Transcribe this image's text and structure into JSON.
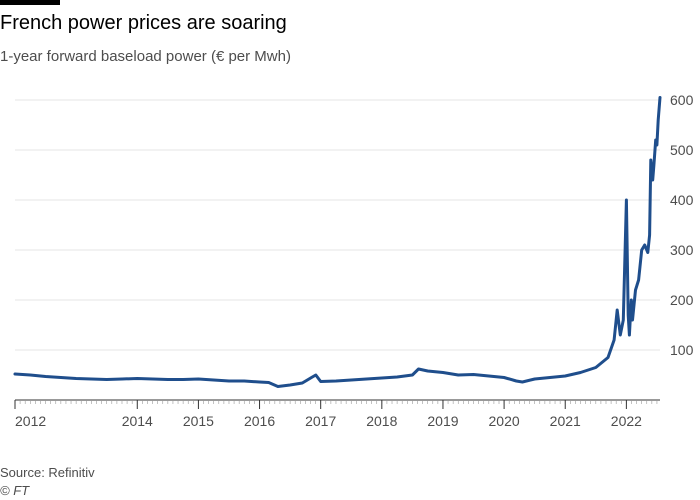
{
  "title": "French power prices are soaring",
  "subtitle": "1-year forward baseload power (€ per Mwh)",
  "source": "Source: Refinitiv",
  "copyright": "© FT",
  "colors": {
    "line": "#1f4e8c",
    "grid": "#e6e6e6",
    "axis": "#333333",
    "brand_bar": "#000000"
  },
  "chart_data": {
    "type": "line",
    "title": "French power prices are soaring",
    "subtitle": "1-year forward baseload power (€ per Mwh)",
    "xlabel": "",
    "ylabel": "",
    "y_axis_position": "right",
    "grid": true,
    "xlim": [
      2012.0,
      2022.55
    ],
    "ylim": [
      0,
      620
    ],
    "y_ticks": [
      100,
      200,
      300,
      400,
      500,
      600
    ],
    "y_tick_labels": [
      "100",
      "200",
      "300",
      "400",
      "500",
      "600"
    ],
    "x_ticks": [
      2012,
      2014,
      2015,
      2016,
      2017,
      2018,
      2019,
      2020,
      2021,
      2022
    ],
    "x_tick_labels": [
      "2012",
      "2014",
      "2015",
      "2016",
      "2017",
      "2018",
      "2019",
      "2020",
      "2021",
      "2022"
    ],
    "series": [
      {
        "name": "",
        "x": [
          2012.0,
          2012.25,
          2012.5,
          2012.75,
          2013.0,
          2013.25,
          2013.5,
          2013.75,
          2014.0,
          2014.25,
          2014.5,
          2014.75,
          2015.0,
          2015.25,
          2015.5,
          2015.75,
          2016.0,
          2016.15,
          2016.3,
          2016.5,
          2016.7,
          2016.85,
          2016.92,
          2017.0,
          2017.25,
          2017.5,
          2017.75,
          2018.0,
          2018.25,
          2018.5,
          2018.6,
          2018.75,
          2019.0,
          2019.25,
          2019.5,
          2019.75,
          2020.0,
          2020.2,
          2020.3,
          2020.5,
          2020.75,
          2021.0,
          2021.25,
          2021.5,
          2021.7,
          2021.8,
          2021.85,
          2021.9,
          2021.95,
          2022.0,
          2022.03,
          2022.05,
          2022.08,
          2022.1,
          2022.15,
          2022.2,
          2022.25,
          2022.3,
          2022.35,
          2022.38,
          2022.4,
          2022.43,
          2022.45,
          2022.48,
          2022.5,
          2022.52,
          2022.55
        ],
        "y": [
          52,
          50,
          47,
          45,
          43,
          42,
          41,
          42,
          43,
          42,
          41,
          41,
          42,
          40,
          38,
          38,
          36,
          35,
          27,
          30,
          34,
          45,
          50,
          37,
          38,
          40,
          42,
          44,
          46,
          50,
          62,
          58,
          55,
          50,
          51,
          48,
          45,
          38,
          36,
          42,
          45,
          48,
          55,
          65,
          85,
          120,
          180,
          130,
          160,
          400,
          170,
          130,
          200,
          160,
          220,
          240,
          300,
          310,
          295,
          330,
          480,
          440,
          470,
          520,
          510,
          560,
          605
        ]
      }
    ]
  }
}
